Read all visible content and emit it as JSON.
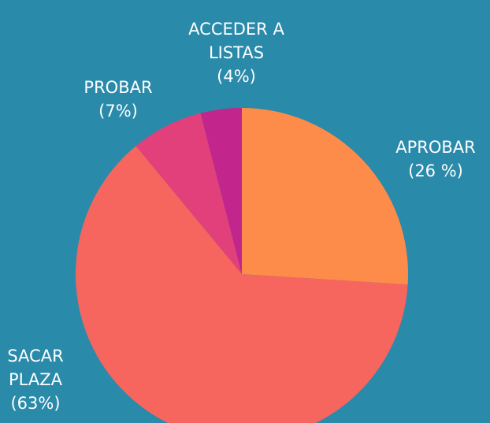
{
  "chart_data": {
    "type": "pie",
    "categories": [
      "APROBAR",
      "SACAR PLAZA",
      "PROBAR",
      "ACCEDER A LISTAS"
    ],
    "values": [
      26,
      63,
      7,
      4
    ],
    "value_labels": [
      "(26 %)",
      "(63%)",
      "(7%)",
      "(4%)"
    ],
    "colors": [
      "#fd8c4a",
      "#f6665e",
      "#e2407a",
      "#c2258c"
    ]
  }
}
